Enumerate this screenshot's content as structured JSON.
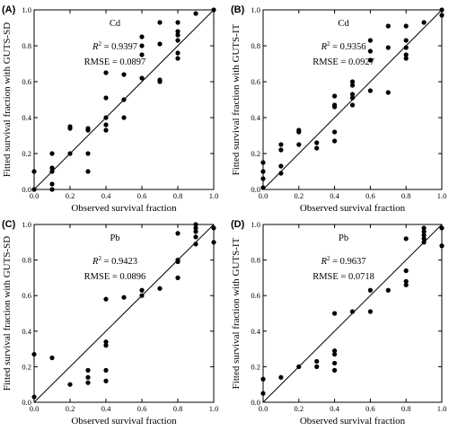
{
  "chart_data": [
    {
      "type": "scatter",
      "panel_label": "(A)",
      "metal": "Cd",
      "r2_label": "R",
      "r2_value": "= 0.9397",
      "rmse": "RMSE = 0.0897",
      "xlabel": "Observed survival fraction",
      "ylabel": "Fitted survival fraction with GUTS-SD",
      "xlim": [
        0,
        1
      ],
      "ylim": [
        0,
        1
      ],
      "xticks": [
        "0.0",
        "0.2",
        "0.4",
        "0.6",
        "0.8",
        "1.0"
      ],
      "yticks": [
        "0.0",
        "0.2",
        "0.4",
        "0.6",
        "0.8",
        "1.0"
      ],
      "reference_line": "1:1",
      "points": [
        [
          0,
          0.1
        ],
        [
          0,
          0
        ],
        [
          0.1,
          0.2
        ],
        [
          0.1,
          0.12
        ],
        [
          0.1,
          0.1
        ],
        [
          0.1,
          0.03
        ],
        [
          0.1,
          0
        ],
        [
          0.2,
          0.35
        ],
        [
          0.2,
          0.34
        ],
        [
          0.2,
          0.2
        ],
        [
          0.3,
          0.34
        ],
        [
          0.3,
          0.33
        ],
        [
          0.3,
          0.2
        ],
        [
          0.3,
          0.1
        ],
        [
          0.4,
          0.65
        ],
        [
          0.4,
          0.51
        ],
        [
          0.4,
          0.4
        ],
        [
          0.4,
          0.36
        ],
        [
          0.4,
          0.33
        ],
        [
          0.5,
          0.64
        ],
        [
          0.5,
          0.5
        ],
        [
          0.5,
          0.4
        ],
        [
          0.6,
          0.85
        ],
        [
          0.6,
          0.8
        ],
        [
          0.6,
          0.75
        ],
        [
          0.6,
          0.62
        ],
        [
          0.7,
          0.93
        ],
        [
          0.7,
          0.81
        ],
        [
          0.7,
          0.61
        ],
        [
          0.7,
          0.6
        ],
        [
          0.8,
          0.93
        ],
        [
          0.8,
          0.88
        ],
        [
          0.8,
          0.86
        ],
        [
          0.8,
          0.83
        ],
        [
          0.8,
          0.76
        ],
        [
          0.8,
          0.73
        ],
        [
          0.9,
          0.98
        ],
        [
          1,
          1
        ]
      ]
    },
    {
      "type": "scatter",
      "panel_label": "(B)",
      "metal": "Cd",
      "r2_label": "R",
      "r2_value": "= 0.9356",
      "rmse": "RMSE = 0.0927",
      "xlabel": "Observed survival fraction",
      "ylabel": "Fitted survival fraction with GUTS-IT",
      "xlim": [
        0,
        1
      ],
      "ylim": [
        0,
        1
      ],
      "xticks": [
        "0.0",
        "0.2",
        "0.4",
        "0.6",
        "0.8",
        "1.0"
      ],
      "yticks": [
        "0.0",
        "0.2",
        "0.4",
        "0.6",
        "0.8",
        "1.0"
      ],
      "reference_line": "1:1",
      "points": [
        [
          0,
          0.15
        ],
        [
          0,
          0.1
        ],
        [
          0,
          0.06
        ],
        [
          0,
          0.01
        ],
        [
          0.1,
          0.25
        ],
        [
          0.1,
          0.22
        ],
        [
          0.1,
          0.13
        ],
        [
          0.1,
          0.09
        ],
        [
          0.2,
          0.33
        ],
        [
          0.2,
          0.32
        ],
        [
          0.2,
          0.25
        ],
        [
          0.3,
          0.26
        ],
        [
          0.3,
          0.23
        ],
        [
          0.4,
          0.52
        ],
        [
          0.4,
          0.47
        ],
        [
          0.4,
          0.46
        ],
        [
          0.4,
          0.32
        ],
        [
          0.4,
          0.27
        ],
        [
          0.5,
          0.6
        ],
        [
          0.5,
          0.58
        ],
        [
          0.5,
          0.53
        ],
        [
          0.5,
          0.51
        ],
        [
          0.5,
          0.47
        ],
        [
          0.6,
          0.83
        ],
        [
          0.6,
          0.77
        ],
        [
          0.6,
          0.72
        ],
        [
          0.6,
          0.55
        ],
        [
          0.7,
          0.91
        ],
        [
          0.7,
          0.79
        ],
        [
          0.7,
          0.54
        ],
        [
          0.8,
          0.91
        ],
        [
          0.8,
          0.83
        ],
        [
          0.8,
          0.79
        ],
        [
          0.8,
          0.75
        ],
        [
          0.8,
          0.73
        ],
        [
          0.9,
          0.93
        ],
        [
          1,
          1
        ],
        [
          1,
          0.97
        ]
      ]
    },
    {
      "type": "scatter",
      "panel_label": "(C)",
      "metal": "Pb",
      "r2_label": "R",
      "r2_value": "= 0.9423",
      "rmse": "RMSE = 0.0896",
      "xlabel": "Observed survival fraction",
      "ylabel": "Fitted survival fraction with GUTS-SD",
      "xlim": [
        0,
        1
      ],
      "ylim": [
        0,
        1
      ],
      "xticks": [
        "0.0",
        "0.2",
        "0.4",
        "0.6",
        "0.8",
        "1.0"
      ],
      "yticks": [
        "0.0",
        "0.2",
        "0.4",
        "0.6",
        "0.8",
        "1.0"
      ],
      "reference_line": "1:1",
      "points": [
        [
          0,
          0.27
        ],
        [
          0,
          0.03
        ],
        [
          0.1,
          0.25
        ],
        [
          0.2,
          0.1
        ],
        [
          0.3,
          0.18
        ],
        [
          0.3,
          0.14
        ],
        [
          0.3,
          0.11
        ],
        [
          0.4,
          0.58
        ],
        [
          0.4,
          0.34
        ],
        [
          0.4,
          0.32
        ],
        [
          0.4,
          0.18
        ],
        [
          0.4,
          0.12
        ],
        [
          0.5,
          0.59
        ],
        [
          0.6,
          0.63
        ],
        [
          0.6,
          0.6
        ],
        [
          0.7,
          0.64
        ],
        [
          0.8,
          0.95
        ],
        [
          0.8,
          0.8
        ],
        [
          0.8,
          0.79
        ],
        [
          0.8,
          0.7
        ],
        [
          0.9,
          1
        ],
        [
          0.9,
          0.98
        ],
        [
          0.9,
          0.96
        ],
        [
          0.9,
          0.93
        ],
        [
          0.9,
          0.89
        ],
        [
          1,
          0.98
        ],
        [
          1,
          0.9
        ]
      ]
    },
    {
      "type": "scatter",
      "panel_label": "(D)",
      "metal": "Pb",
      "r2_label": "R",
      "r2_value": "= 0.9637",
      "rmse": "RMSE = 0.0718",
      "xlabel": "Observed survival fraction",
      "ylabel": "Fitted survival fraction with GUTS-IT",
      "xlim": [
        0,
        1
      ],
      "ylim": [
        0,
        1
      ],
      "xticks": [
        "0.0",
        "0.2",
        "0.4",
        "0.6",
        "0.8",
        "1.0"
      ],
      "yticks": [
        "0.0",
        "0.2",
        "0.4",
        "0.6",
        "0.8",
        "1.0"
      ],
      "reference_line": "1:1",
      "points": [
        [
          0,
          0.13
        ],
        [
          0,
          0.05
        ],
        [
          0.1,
          0.14
        ],
        [
          0.2,
          0.2
        ],
        [
          0.3,
          0.23
        ],
        [
          0.3,
          0.2
        ],
        [
          0.4,
          0.5
        ],
        [
          0.4,
          0.29
        ],
        [
          0.4,
          0.27
        ],
        [
          0.4,
          0.22
        ],
        [
          0.4,
          0.18
        ],
        [
          0.5,
          0.51
        ],
        [
          0.6,
          0.63
        ],
        [
          0.6,
          0.51
        ],
        [
          0.7,
          0.63
        ],
        [
          0.8,
          0.92
        ],
        [
          0.8,
          0.74
        ],
        [
          0.8,
          0.68
        ],
        [
          0.8,
          0.66
        ],
        [
          0.9,
          0.98
        ],
        [
          0.9,
          0.96
        ],
        [
          0.9,
          0.94
        ],
        [
          0.9,
          0.92
        ],
        [
          0.9,
          0.9
        ],
        [
          1,
          0.98
        ],
        [
          1,
          0.88
        ]
      ]
    }
  ]
}
